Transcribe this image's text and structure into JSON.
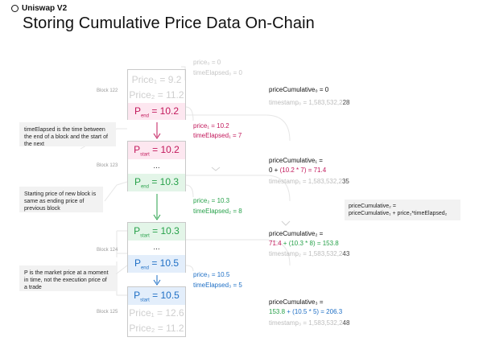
{
  "header": {
    "brand": "Uniswap V2",
    "title": "Storing Cumulative Price Data On-Chain"
  },
  "notes": {
    "time_elapsed": "timeElapsed is the time between the end of a block and the start of the next",
    "starting_price": "Starting price of new block is same as ending price of previous block",
    "market_price": "P is the market price at a moment in time, not the execution price of a trade"
  },
  "blocks": {
    "b122": {
      "label": "Block 122",
      "price1": "Price₁ = 9.2",
      "price2": "Price₂ = 11.2",
      "pend": "= 10.2"
    },
    "b123": {
      "label": "Block 123",
      "pstart": "= 10.2",
      "dots": "...",
      "pend": "= 10.3"
    },
    "b124": {
      "label": "Block 124",
      "pstart": "= 10.3",
      "dots": "...",
      "pend": "= 10.5"
    },
    "b125": {
      "label": "Block 125",
      "pstart": "= 10.5",
      "price1": "Price₁ = 12.6",
      "price2": "Price₂ = 11.2"
    }
  },
  "p_symbol": "P",
  "sub_start": "start",
  "sub_end": "end",
  "initial": {
    "price0": "price₀ = 0",
    "time0": "timeElapsed₀ = 0"
  },
  "intervals": [
    {
      "price": "price₁ = 10.2",
      "time": "timeElapsed₁ = 7"
    },
    {
      "price": "price₂ = 10.3",
      "time": "timeElapsed₂ = 8"
    },
    {
      "price": "price₃ = 10.5",
      "time": "timeElapsed₃ = 5"
    }
  ],
  "cumulatives": {
    "c0": {
      "label": "priceCumulative₀ = 0",
      "ts_gray": "timestamp₀ = 1,583,532,2",
      "ts_dark": "28"
    },
    "c1": {
      "label": "priceCumulative₁ =",
      "f_a": "0 + ",
      "f_b": "(10.2 * 7)",
      "f_c": " = 71.4",
      "ts_gray": "timestamp₁ = 1,583,532,2",
      "ts_dark": "35"
    },
    "c2": {
      "label": "priceCumulative₂ =",
      "f_a": "71.4",
      "f_b": " + (10.3 * 8)",
      "f_c": " = 153.8",
      "ts_gray": "timestamp₂ = 1,583,532,2",
      "ts_dark": "43"
    },
    "c3": {
      "label": "priceCumulative₃ =",
      "f_a": "153.8",
      "f_b": " + (10.5 * 5)",
      "f_c": " = 206.3",
      "ts_gray": "timestamp₃ = 1,583,532,2",
      "ts_dark": "48"
    }
  },
  "formula_note": {
    "line1": "priceCumulative₂ =",
    "line2": "priceCumulative₁ + price₂*timeElapsed₂"
  },
  "colors": {
    "pink": "#c2185b",
    "green": "#27a14a",
    "blue": "#1e6fc5",
    "grey": "#cfcfcf"
  }
}
